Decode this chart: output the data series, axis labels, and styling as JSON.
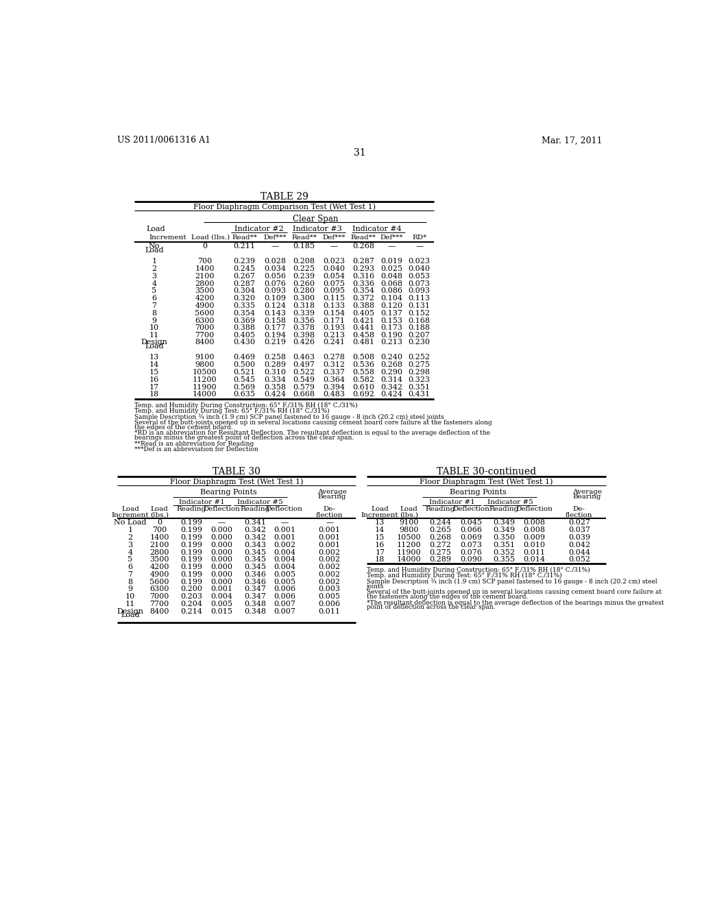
{
  "header_left": "US 2011/0061316 A1",
  "header_right": "Mar. 17, 2011",
  "page_num": "31",
  "table29_title": "TABLE 29",
  "table29_subtitle": "Floor Diaphragm Comparison Test (Wet Test 1)",
  "table29_span_label": "Clear Span",
  "table29_data": [
    [
      "No\nLoad",
      "0",
      "0.211",
      "—",
      "0.185",
      "—",
      "0.268",
      "—",
      "—"
    ],
    [
      "1",
      "700",
      "0.239",
      "0.028",
      "0.208",
      "0.023",
      "0.287",
      "0.019",
      "0.023"
    ],
    [
      "2",
      "1400",
      "0.245",
      "0.034",
      "0.225",
      "0.040",
      "0.293",
      "0.025",
      "0.040"
    ],
    [
      "3",
      "2100",
      "0.267",
      "0.056",
      "0.239",
      "0.054",
      "0.316",
      "0.048",
      "0.053"
    ],
    [
      "4",
      "2800",
      "0.287",
      "0.076",
      "0.260",
      "0.075",
      "0.336",
      "0.068",
      "0.073"
    ],
    [
      "5",
      "3500",
      "0.304",
      "0.093",
      "0.280",
      "0.095",
      "0.354",
      "0.086",
      "0.093"
    ],
    [
      "6",
      "4200",
      "0.320",
      "0.109",
      "0.300",
      "0.115",
      "0.372",
      "0.104",
      "0.113"
    ],
    [
      "7",
      "4900",
      "0.335",
      "0.124",
      "0.318",
      "0.133",
      "0.388",
      "0.120",
      "0.131"
    ],
    [
      "8",
      "5600",
      "0.354",
      "0.143",
      "0.339",
      "0.154",
      "0.405",
      "0.137",
      "0.152"
    ],
    [
      "9",
      "6300",
      "0.369",
      "0.158",
      "0.356",
      "0.171",
      "0.421",
      "0.153",
      "0.168"
    ],
    [
      "10",
      "7000",
      "0.388",
      "0.177",
      "0.378",
      "0.193",
      "0.441",
      "0.173",
      "0.188"
    ],
    [
      "11",
      "7700",
      "0.405",
      "0.194",
      "0.398",
      "0.213",
      "0.458",
      "0.190",
      "0.207"
    ],
    [
      "Design\nLoad",
      "8400",
      "0.430",
      "0.219",
      "0.426",
      "0.241",
      "0.481",
      "0.213",
      "0.230"
    ],
    [
      "13",
      "9100",
      "0.469",
      "0.258",
      "0.463",
      "0.278",
      "0.508",
      "0.240",
      "0.252"
    ],
    [
      "14",
      "9800",
      "0.500",
      "0.289",
      "0.497",
      "0.312",
      "0.536",
      "0.268",
      "0.275"
    ],
    [
      "15",
      "10500",
      "0.521",
      "0.310",
      "0.522",
      "0.337",
      "0.558",
      "0.290",
      "0.298"
    ],
    [
      "16",
      "11200",
      "0.545",
      "0.334",
      "0.549",
      "0.364",
      "0.582",
      "0.314",
      "0.323"
    ],
    [
      "17",
      "11900",
      "0.569",
      "0.358",
      "0.579",
      "0.394",
      "0.610",
      "0.342",
      "0.351"
    ],
    [
      "18",
      "14000",
      "0.635",
      "0.424",
      "0.668",
      "0.483",
      "0.692",
      "0.424",
      "0.431"
    ]
  ],
  "table29_notes": [
    "Temp. and Humidity During Construction: 65° F./31% RH (18° C./31%)",
    "Temp. and Humidity During Test: 65° F./31% RH (18° C./31%)",
    "Sample Description ¾ inch (1.9 cm) SCP panel fastened to 16 gauge - 8 inch (20.2 cm) steel joints",
    "Several of the butt-joints opened up in several locations causing cement board core failure at the fasteners along\nthe edges of the cement board.",
    "*RD is an abbreviation for Resultant Deflection. The resultant deflection is equal to the average deflection of the\nbearings minus the greatest point of deflection across the clear span.",
    "**Read is an abbreviation for Reading",
    "***Def is an abbreviation for Deflection"
  ],
  "table30_title": "TABLE 30",
  "table30_cont_title": "TABLE 30-continued",
  "table30_subtitle": "Floor Diaphragm Test (Wet Test 1)",
  "table30_data": [
    [
      "No Load",
      "0",
      "0.199",
      "—",
      "0.341",
      "—",
      "—"
    ],
    [
      "1",
      "700",
      "0.199",
      "0.000",
      "0.342",
      "0.001",
      "0.001"
    ],
    [
      "2",
      "1400",
      "0.199",
      "0.000",
      "0.342",
      "0.001",
      "0.001"
    ],
    [
      "3",
      "2100",
      "0.199",
      "0.000",
      "0.343",
      "0.002",
      "0.001"
    ],
    [
      "4",
      "2800",
      "0.199",
      "0.000",
      "0.345",
      "0.004",
      "0.002"
    ],
    [
      "5",
      "3500",
      "0.199",
      "0.000",
      "0.345",
      "0.004",
      "0.002"
    ],
    [
      "6",
      "4200",
      "0.199",
      "0.000",
      "0.345",
      "0.004",
      "0.002"
    ],
    [
      "7",
      "4900",
      "0.199",
      "0.000",
      "0.346",
      "0.005",
      "0.002"
    ],
    [
      "8",
      "5600",
      "0.199",
      "0.000",
      "0.346",
      "0.005",
      "0.002"
    ],
    [
      "9",
      "6300",
      "0.200",
      "0.001",
      "0.347",
      "0.006",
      "0.003"
    ],
    [
      "10",
      "7000",
      "0.203",
      "0.004",
      "0.347",
      "0.006",
      "0.005"
    ],
    [
      "11",
      "7700",
      "0.204",
      "0.005",
      "0.348",
      "0.007",
      "0.006"
    ],
    [
      "Design\nLoad",
      "8400",
      "0.214",
      "0.015",
      "0.348",
      "0.007",
      "0.011"
    ]
  ],
  "table30cont_data": [
    [
      "13",
      "9100",
      "0.244",
      "0.045",
      "0.349",
      "0.008",
      "0.027"
    ],
    [
      "14",
      "9800",
      "0.265",
      "0.066",
      "0.349",
      "0.008",
      "0.037"
    ],
    [
      "15",
      "10500",
      "0.268",
      "0.069",
      "0.350",
      "0.009",
      "0.039"
    ],
    [
      "16",
      "11200",
      "0.272",
      "0.073",
      "0.351",
      "0.010",
      "0.042"
    ],
    [
      "17",
      "11900",
      "0.275",
      "0.076",
      "0.352",
      "0.011",
      "0.044"
    ],
    [
      "18",
      "14000",
      "0.289",
      "0.090",
      "0.355",
      "0.014",
      "0.052"
    ]
  ],
  "table30_notes_right": [
    "Temp. and Humidity During Construction: 65° F./31% RH (18° C./31%)",
    "Temp. and Humidity During Test: 65° F./31% RH (18° C./31%)",
    "Sample Description ¾ inch (1.9 cm) SCP panel fastened to 16 gauge - 8 inch (20.2 cm) steel\njoints",
    "Several of the butt-joints opened up in several locations causing cement board core failure at\nthe fasteners along the edges of the cement board.",
    "*The resultant deflection is equal to the average deflection of the bearings minus the greatest\npoint of deflection across the clear span."
  ]
}
